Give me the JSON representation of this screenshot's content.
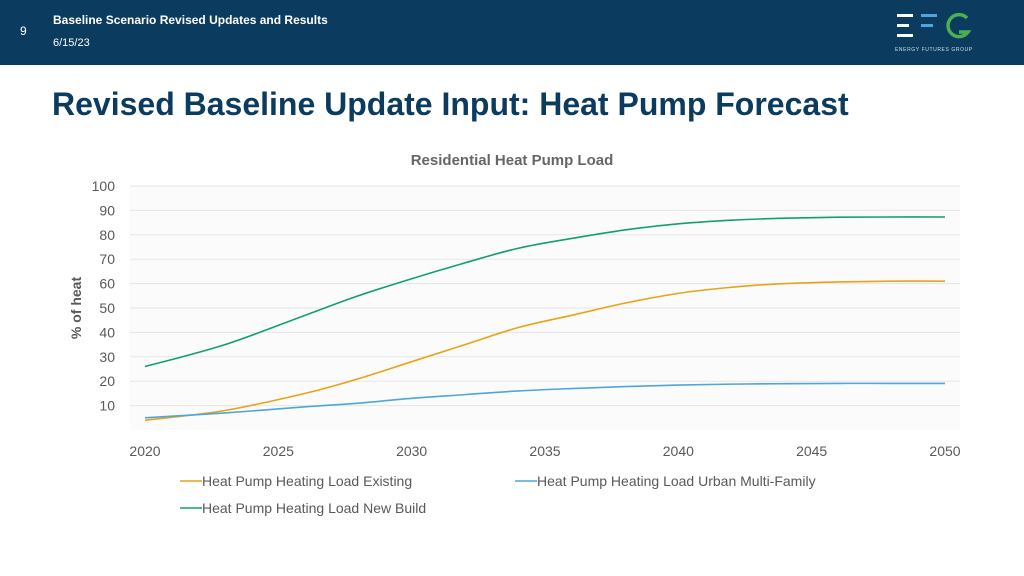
{
  "header": {
    "slide_number": "9",
    "subtitle": "Baseline Scenario Revised Updates and Results",
    "date": "6/15/23",
    "logo_caption": "ENERGY FUTURES GROUP"
  },
  "page_title": "Revised Baseline Update Input: Heat Pump Forecast",
  "colors": {
    "header_bg": "#0b3b5e",
    "title": "#0b3b5e",
    "existing": "#e8a317",
    "urban": "#4ea6dc",
    "new_build": "#14a06a",
    "logo_green": "#4caf50",
    "logo_blue": "#4ea6dc"
  },
  "chart_data": {
    "type": "line",
    "title": "Residential Heat Pump Load",
    "xlabel": "",
    "ylabel": "% of heat",
    "xlim": [
      2020,
      2050
    ],
    "ylim": [
      0,
      100
    ],
    "xticks": [
      2020,
      2025,
      2030,
      2035,
      2040,
      2045,
      2050
    ],
    "yticks": [
      10,
      20,
      30,
      40,
      50,
      60,
      70,
      80,
      90,
      100
    ],
    "grid": true,
    "legend_position": "bottom",
    "x": [
      2020,
      2023,
      2026,
      2028,
      2030,
      2032,
      2034,
      2036,
      2038,
      2040,
      2042,
      2044,
      2046,
      2048,
      2050
    ],
    "series": [
      {
        "name": "Heat Pump Heating Load Existing",
        "color": "#e8a317",
        "values": [
          4,
          8,
          15,
          21,
          28,
          35,
          42,
          47,
          52,
          56,
          58.5,
          60,
          60.7,
          61,
          61
        ]
      },
      {
        "name": "Heat Pump Heating Load Urban Multi-Family",
        "color": "#4ea6dc",
        "values": [
          5,
          7,
          9.5,
          11,
          13,
          14.5,
          16,
          17,
          17.8,
          18.4,
          18.8,
          19,
          19.1,
          19.1,
          19.1
        ]
      },
      {
        "name": "Heat Pump Heating Load New Build",
        "color": "#14a06a",
        "values": [
          26,
          35,
          47,
          55,
          62,
          68.5,
          74.5,
          78.5,
          82,
          84.5,
          86,
          86.8,
          87.2,
          87.3,
          87.3
        ]
      }
    ]
  }
}
